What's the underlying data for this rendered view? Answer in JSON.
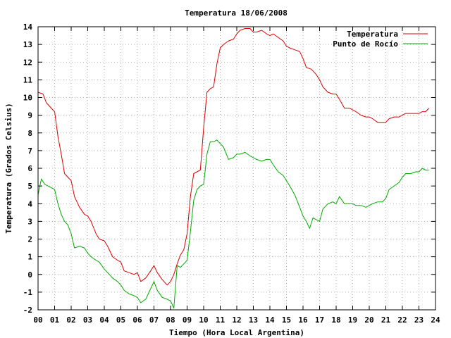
{
  "chart_data": {
    "type": "line",
    "title": "Temperatura 18/06/2008",
    "xlabel": "Tiempo (Hora Local Argentina)",
    "ylabel": "Temperatura (Grados Celsius)",
    "xlim": [
      0,
      24
    ],
    "ylim": [
      -2,
      14
    ],
    "x_ticks": [
      "00",
      "01",
      "02",
      "03",
      "04",
      "05",
      "06",
      "07",
      "08",
      "09",
      "10",
      "11",
      "12",
      "13",
      "14",
      "15",
      "16",
      "17",
      "18",
      "19",
      "20",
      "21",
      "22",
      "23",
      "24"
    ],
    "y_ticks": [
      "-2",
      "-1",
      "0",
      "1",
      "2",
      "3",
      "4",
      "5",
      "6",
      "7",
      "8",
      "9",
      "10",
      "11",
      "12",
      "13",
      "14"
    ],
    "grid": true,
    "legend_position": "top-right",
    "series": [
      {
        "name": "Temperatura",
        "color": "#dd0000",
        "x": [
          0.0,
          0.3,
          0.5,
          0.8,
          1.0,
          1.2,
          1.4,
          1.6,
          1.8,
          2.0,
          2.2,
          2.5,
          2.8,
          3.0,
          3.2,
          3.5,
          3.7,
          4.0,
          4.2,
          4.5,
          4.8,
          5.0,
          5.2,
          5.5,
          5.8,
          6.0,
          6.2,
          6.5,
          6.8,
          7.0,
          7.2,
          7.5,
          7.8,
          8.0,
          8.2,
          8.4,
          8.6,
          8.8,
          9.0,
          9.2,
          9.4,
          9.6,
          9.8,
          10.0,
          10.2,
          10.4,
          10.6,
          10.8,
          11.0,
          11.2,
          11.5,
          11.8,
          12.0,
          12.2,
          12.5,
          12.8,
          13.0,
          13.2,
          13.5,
          13.8,
          14.0,
          14.2,
          14.5,
          14.8,
          15.0,
          15.2,
          15.5,
          15.8,
          16.0,
          16.2,
          16.5,
          16.8,
          17.0,
          17.2,
          17.5,
          17.8,
          18.0,
          18.2,
          18.5,
          18.8,
          19.0,
          19.2,
          19.5,
          19.8,
          20.0,
          20.2,
          20.5,
          20.8,
          21.0,
          21.2,
          21.5,
          21.8,
          22.0,
          22.2,
          22.5,
          22.8,
          23.0,
          23.2,
          23.4,
          23.6
        ],
        "values": [
          10.3,
          10.2,
          9.7,
          9.4,
          9.2,
          7.8,
          6.8,
          5.7,
          5.5,
          5.3,
          4.4,
          3.8,
          3.4,
          3.3,
          3.0,
          2.3,
          2.0,
          1.9,
          1.6,
          1.0,
          0.8,
          0.7,
          0.2,
          0.1,
          0.0,
          0.1,
          -0.4,
          -0.2,
          0.2,
          0.5,
          0.1,
          -0.3,
          -0.6,
          -0.4,
          0.0,
          0.6,
          1.1,
          1.4,
          2.3,
          4.4,
          5.7,
          5.8,
          5.9,
          8.3,
          10.3,
          10.5,
          10.6,
          11.9,
          12.8,
          13.0,
          13.2,
          13.3,
          13.6,
          13.8,
          13.9,
          13.9,
          13.7,
          13.7,
          13.8,
          13.6,
          13.5,
          13.6,
          13.4,
          13.2,
          12.9,
          12.8,
          12.7,
          12.6,
          12.2,
          11.7,
          11.6,
          11.3,
          11.0,
          10.6,
          10.3,
          10.2,
          10.2,
          9.9,
          9.4,
          9.4,
          9.3,
          9.2,
          9.0,
          8.9,
          8.9,
          8.8,
          8.6,
          8.6,
          8.6,
          8.8,
          8.9,
          8.9,
          9.0,
          9.1,
          9.1,
          9.1,
          9.1,
          9.2,
          9.2,
          9.4
        ]
      },
      {
        "name": "Punto de Rocío",
        "color": "#00aa00",
        "x": [
          0.0,
          0.2,
          0.4,
          0.6,
          0.8,
          1.0,
          1.2,
          1.4,
          1.6,
          1.8,
          2.0,
          2.2,
          2.5,
          2.8,
          3.0,
          3.2,
          3.5,
          3.7,
          4.0,
          4.2,
          4.5,
          4.8,
          5.0,
          5.2,
          5.5,
          5.8,
          6.0,
          6.2,
          6.5,
          6.8,
          7.0,
          7.2,
          7.5,
          7.8,
          8.0,
          8.2,
          8.4,
          8.6,
          8.8,
          9.0,
          9.2,
          9.4,
          9.6,
          9.8,
          10.0,
          10.2,
          10.4,
          10.6,
          10.8,
          11.0,
          11.2,
          11.5,
          11.8,
          12.0,
          12.2,
          12.5,
          12.8,
          13.0,
          13.2,
          13.5,
          13.8,
          14.0,
          14.2,
          14.5,
          14.8,
          15.0,
          15.2,
          15.5,
          15.8,
          16.0,
          16.2,
          16.4,
          16.6,
          16.8,
          17.0,
          17.2,
          17.5,
          17.8,
          18.0,
          18.2,
          18.5,
          18.8,
          19.0,
          19.2,
          19.5,
          19.8,
          20.0,
          20.2,
          20.5,
          20.8,
          21.0,
          21.2,
          21.5,
          21.8,
          22.0,
          22.2,
          22.5,
          22.8,
          23.0,
          23.2,
          23.4,
          23.6
        ],
        "values": [
          4.5,
          5.4,
          5.1,
          5.0,
          4.9,
          4.8,
          4.0,
          3.4,
          3.0,
          2.8,
          2.3,
          1.5,
          1.6,
          1.5,
          1.2,
          1.0,
          0.8,
          0.7,
          0.3,
          0.1,
          -0.2,
          -0.4,
          -0.6,
          -0.9,
          -1.1,
          -1.2,
          -1.3,
          -1.6,
          -1.4,
          -0.8,
          -0.4,
          -0.9,
          -1.3,
          -1.4,
          -1.5,
          -1.9,
          0.5,
          0.4,
          0.6,
          0.8,
          2.4,
          4.2,
          4.8,
          5.0,
          5.1,
          6.8,
          7.5,
          7.5,
          7.6,
          7.4,
          7.2,
          6.5,
          6.6,
          6.8,
          6.8,
          6.9,
          6.7,
          6.6,
          6.5,
          6.4,
          6.5,
          6.5,
          6.2,
          5.8,
          5.6,
          5.3,
          5.0,
          4.5,
          3.8,
          3.3,
          3.0,
          2.6,
          3.2,
          3.1,
          3.0,
          3.7,
          4.0,
          4.1,
          4.0,
          4.4,
          4.0,
          4.0,
          4.0,
          3.9,
          3.9,
          3.8,
          3.9,
          4.0,
          4.1,
          4.1,
          4.3,
          4.8,
          5.0,
          5.2,
          5.5,
          5.7,
          5.7,
          5.8,
          5.8,
          6.0,
          5.9,
          5.9
        ]
      }
    ]
  }
}
